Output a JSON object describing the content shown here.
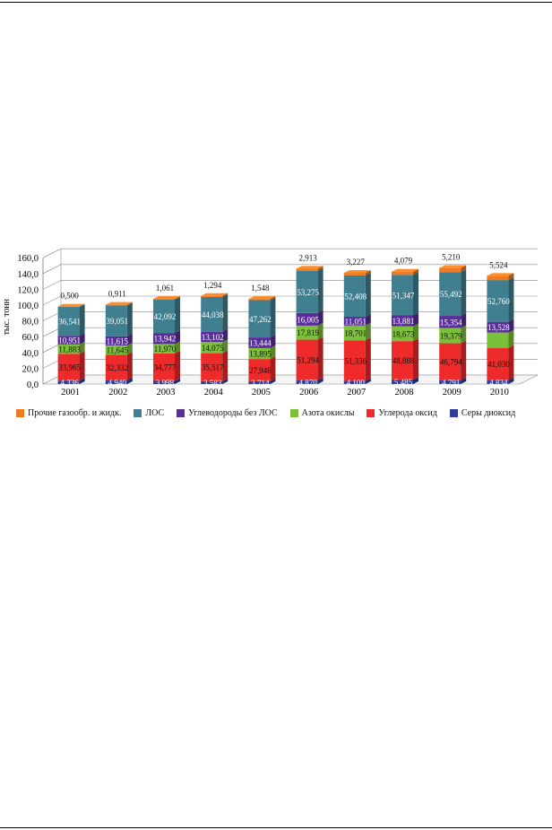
{
  "chart_data": {
    "type": "bar",
    "stacked": true,
    "style": "3d-column",
    "ylabel": "тыс. тонн",
    "ylim": [
      0,
      160
    ],
    "yticks": [
      "0,0",
      "20,0",
      "40,0",
      "60,0",
      "80,0",
      "100,0",
      "120,0",
      "140,0",
      "160,0"
    ],
    "grid": true,
    "legend_position": "bottom",
    "categories": [
      "2001",
      "2002",
      "2003",
      "2004",
      "2005",
      "2006",
      "2007",
      "2008",
      "2009",
      "2010"
    ],
    "series": [
      {
        "name": "Серы диоксид",
        "color": "#2e3d9e",
        "values": [
          4.336,
          4.94,
          3.998,
          3.583,
          3.714,
          4.87,
          4.1,
          5.485,
          4.791,
          4.834
        ],
        "labels": [
          "4,336",
          "4,940",
          "3,998",
          "3,583",
          "3,714",
          "4,870",
          "4,100",
          "5,485",
          "4,791",
          "4,834"
        ]
      },
      {
        "name": "Углерода оксид",
        "color": "#ee2a2a",
        "values": [
          33.965,
          32.332,
          34.777,
          35.517,
          27.946,
          51.294,
          51.336,
          48.888,
          46.794,
          41.03
        ],
        "labels": [
          "33,965",
          "32,332",
          "34,777",
          "35,517",
          "27,946",
          "51,294",
          "51,336",
          "48,888",
          "46,794",
          "41,030"
        ]
      },
      {
        "name": "Азота окислы",
        "color": "#7cbf3a",
        "values": [
          11.883,
          11.645,
          11.97,
          14.075,
          13.895,
          17.819,
          18.701,
          18.673,
          19.379,
          19.4
        ],
        "labels": [
          "11,883",
          "11,645",
          "11,970",
          "14,075",
          "13,895",
          "17,819",
          "18,701",
          "18,673",
          "19,379",
          ""
        ]
      },
      {
        "name": "Углеводороды без ЛОС",
        "color": "#5a2e9a",
        "values": [
          10.951,
          11.615,
          13.942,
          13.102,
          13.444,
          16.005,
          11.051,
          13.881,
          15.354,
          13.528
        ],
        "labels": [
          "10,951",
          "11,615",
          "13,942",
          "13,102",
          "13,444",
          "16,005",
          "11,051",
          "13,881",
          "15,354",
          "13,528"
        ]
      },
      {
        "name": "ЛОС",
        "color": "#3f7f8f",
        "values": [
          36.541,
          39.051,
          42.092,
          44.038,
          47.262,
          53.275,
          52.408,
          51.347,
          55.492,
          52.76
        ],
        "labels": [
          "36,541",
          "39,051",
          "42,092",
          "44,038",
          "47,262",
          "53,275",
          "52,408",
          "51,347",
          "55,492",
          "52,760"
        ]
      },
      {
        "name": "Прочие газообр. и жидк.",
        "color": "#f07a22",
        "values": [
          0.5,
          0.911,
          1.061,
          1.294,
          1.548,
          2.913,
          3.227,
          4.079,
          5.21,
          5.524
        ],
        "labels": [
          "0,500",
          "0,911",
          "1,061",
          "1,294",
          "1,548",
          "2,913",
          "3,227",
          "4,079",
          "5,210",
          "5,524"
        ]
      }
    ],
    "legend_order": [
      "Прочие газообр. и жидк.",
      "ЛОС",
      "Углеводороды без ЛОС",
      "Азота окислы",
      "Углерода оксид",
      "Серы диоксид"
    ]
  }
}
